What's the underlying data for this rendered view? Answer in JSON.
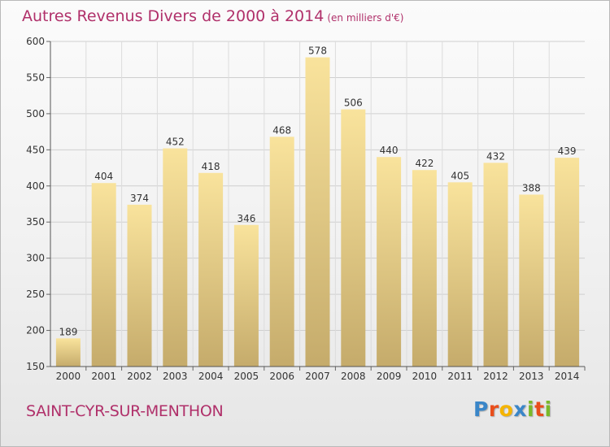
{
  "title": "Autres Revenus Divers de 2000 à 2014",
  "unit_note": "(en milliers d'€)",
  "commune": "SAINT-CYR-SUR-MENTHON",
  "logo": {
    "letters": [
      "P",
      "r",
      "o",
      "x",
      "i",
      "t",
      "i"
    ],
    "colors": [
      "#3a86c8",
      "#e94e1b",
      "#f5b400",
      "#3a86c8",
      "#7ab929",
      "#e94e1b",
      "#7ab929"
    ]
  },
  "chart_data": {
    "type": "bar",
    "title": "Autres Revenus Divers de 2000 à 2014",
    "xlabel": "",
    "ylabel": "",
    "ylim": [
      150,
      600
    ],
    "yticks": [
      150,
      200,
      250,
      300,
      350,
      400,
      450,
      500,
      550,
      600
    ],
    "categories": [
      "2000",
      "2001",
      "2002",
      "2003",
      "2004",
      "2005",
      "2006",
      "2007",
      "2008",
      "2009",
      "2010",
      "2011",
      "2012",
      "2013",
      "2014"
    ],
    "values": [
      189,
      404,
      374,
      452,
      418,
      346,
      468,
      578,
      506,
      440,
      422,
      405,
      432,
      388,
      439
    ],
    "grid": true,
    "bar_color": "#e6cd86"
  }
}
